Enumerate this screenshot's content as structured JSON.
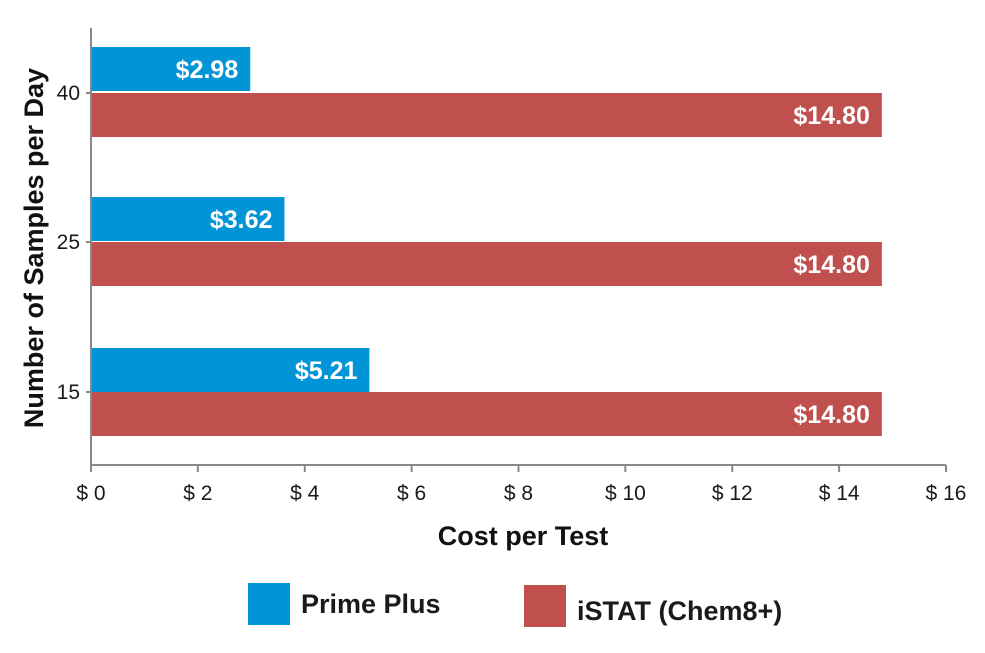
{
  "chart_data": {
    "type": "bar",
    "orientation": "horizontal",
    "categories": [
      "40",
      "25",
      "15"
    ],
    "series": [
      {
        "name": "Prime Plus",
        "color": "#0195d7",
        "values": [
          2.98,
          3.62,
          5.21
        ],
        "labels": [
          "$2.98",
          "$3.62",
          "$5.21"
        ]
      },
      {
        "name": "iSTAT (Chem8+)",
        "color": "#c0504d",
        "values": [
          14.8,
          14.8,
          14.8
        ],
        "labels": [
          "$14.80",
          "$14.80",
          "$14.80"
        ]
      }
    ],
    "xlabel": "Cost per Test",
    "ylabel": "Number of Samples per Day",
    "xlim": [
      0,
      16
    ],
    "xticks": [
      0,
      2,
      4,
      6,
      8,
      10,
      12,
      14,
      16
    ],
    "xtick_labels": [
      "$ 0",
      "$ 2",
      "$ 4",
      "$ 6",
      "$ 8",
      "$ 10",
      "$ 12",
      "$ 14",
      "$ 16"
    ],
    "grid": false,
    "legend_position": "bottom"
  }
}
